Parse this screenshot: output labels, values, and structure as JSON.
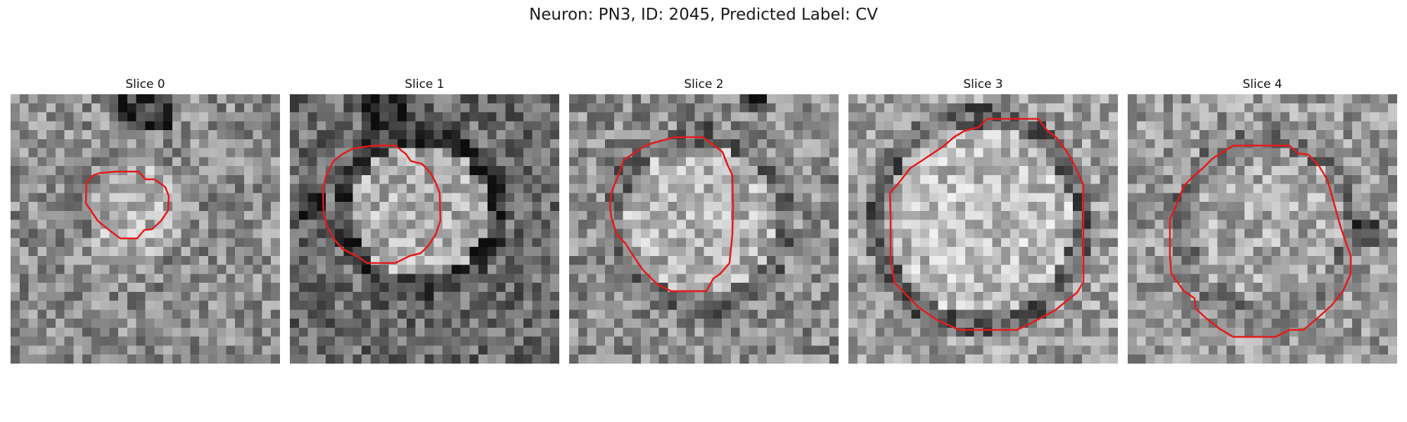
{
  "figure": {
    "title": "Neuron: PN3, ID: 2045, Predicted Label: CV"
  },
  "panels": [
    {
      "title": "Slice 0"
    },
    {
      "title": "Slice 1"
    },
    {
      "title": "Slice 2"
    },
    {
      "title": "Slice 3"
    },
    {
      "title": "Slice 4"
    }
  ],
  "colors": {
    "contour": "#e41a1c",
    "background": "#ffffff"
  }
}
